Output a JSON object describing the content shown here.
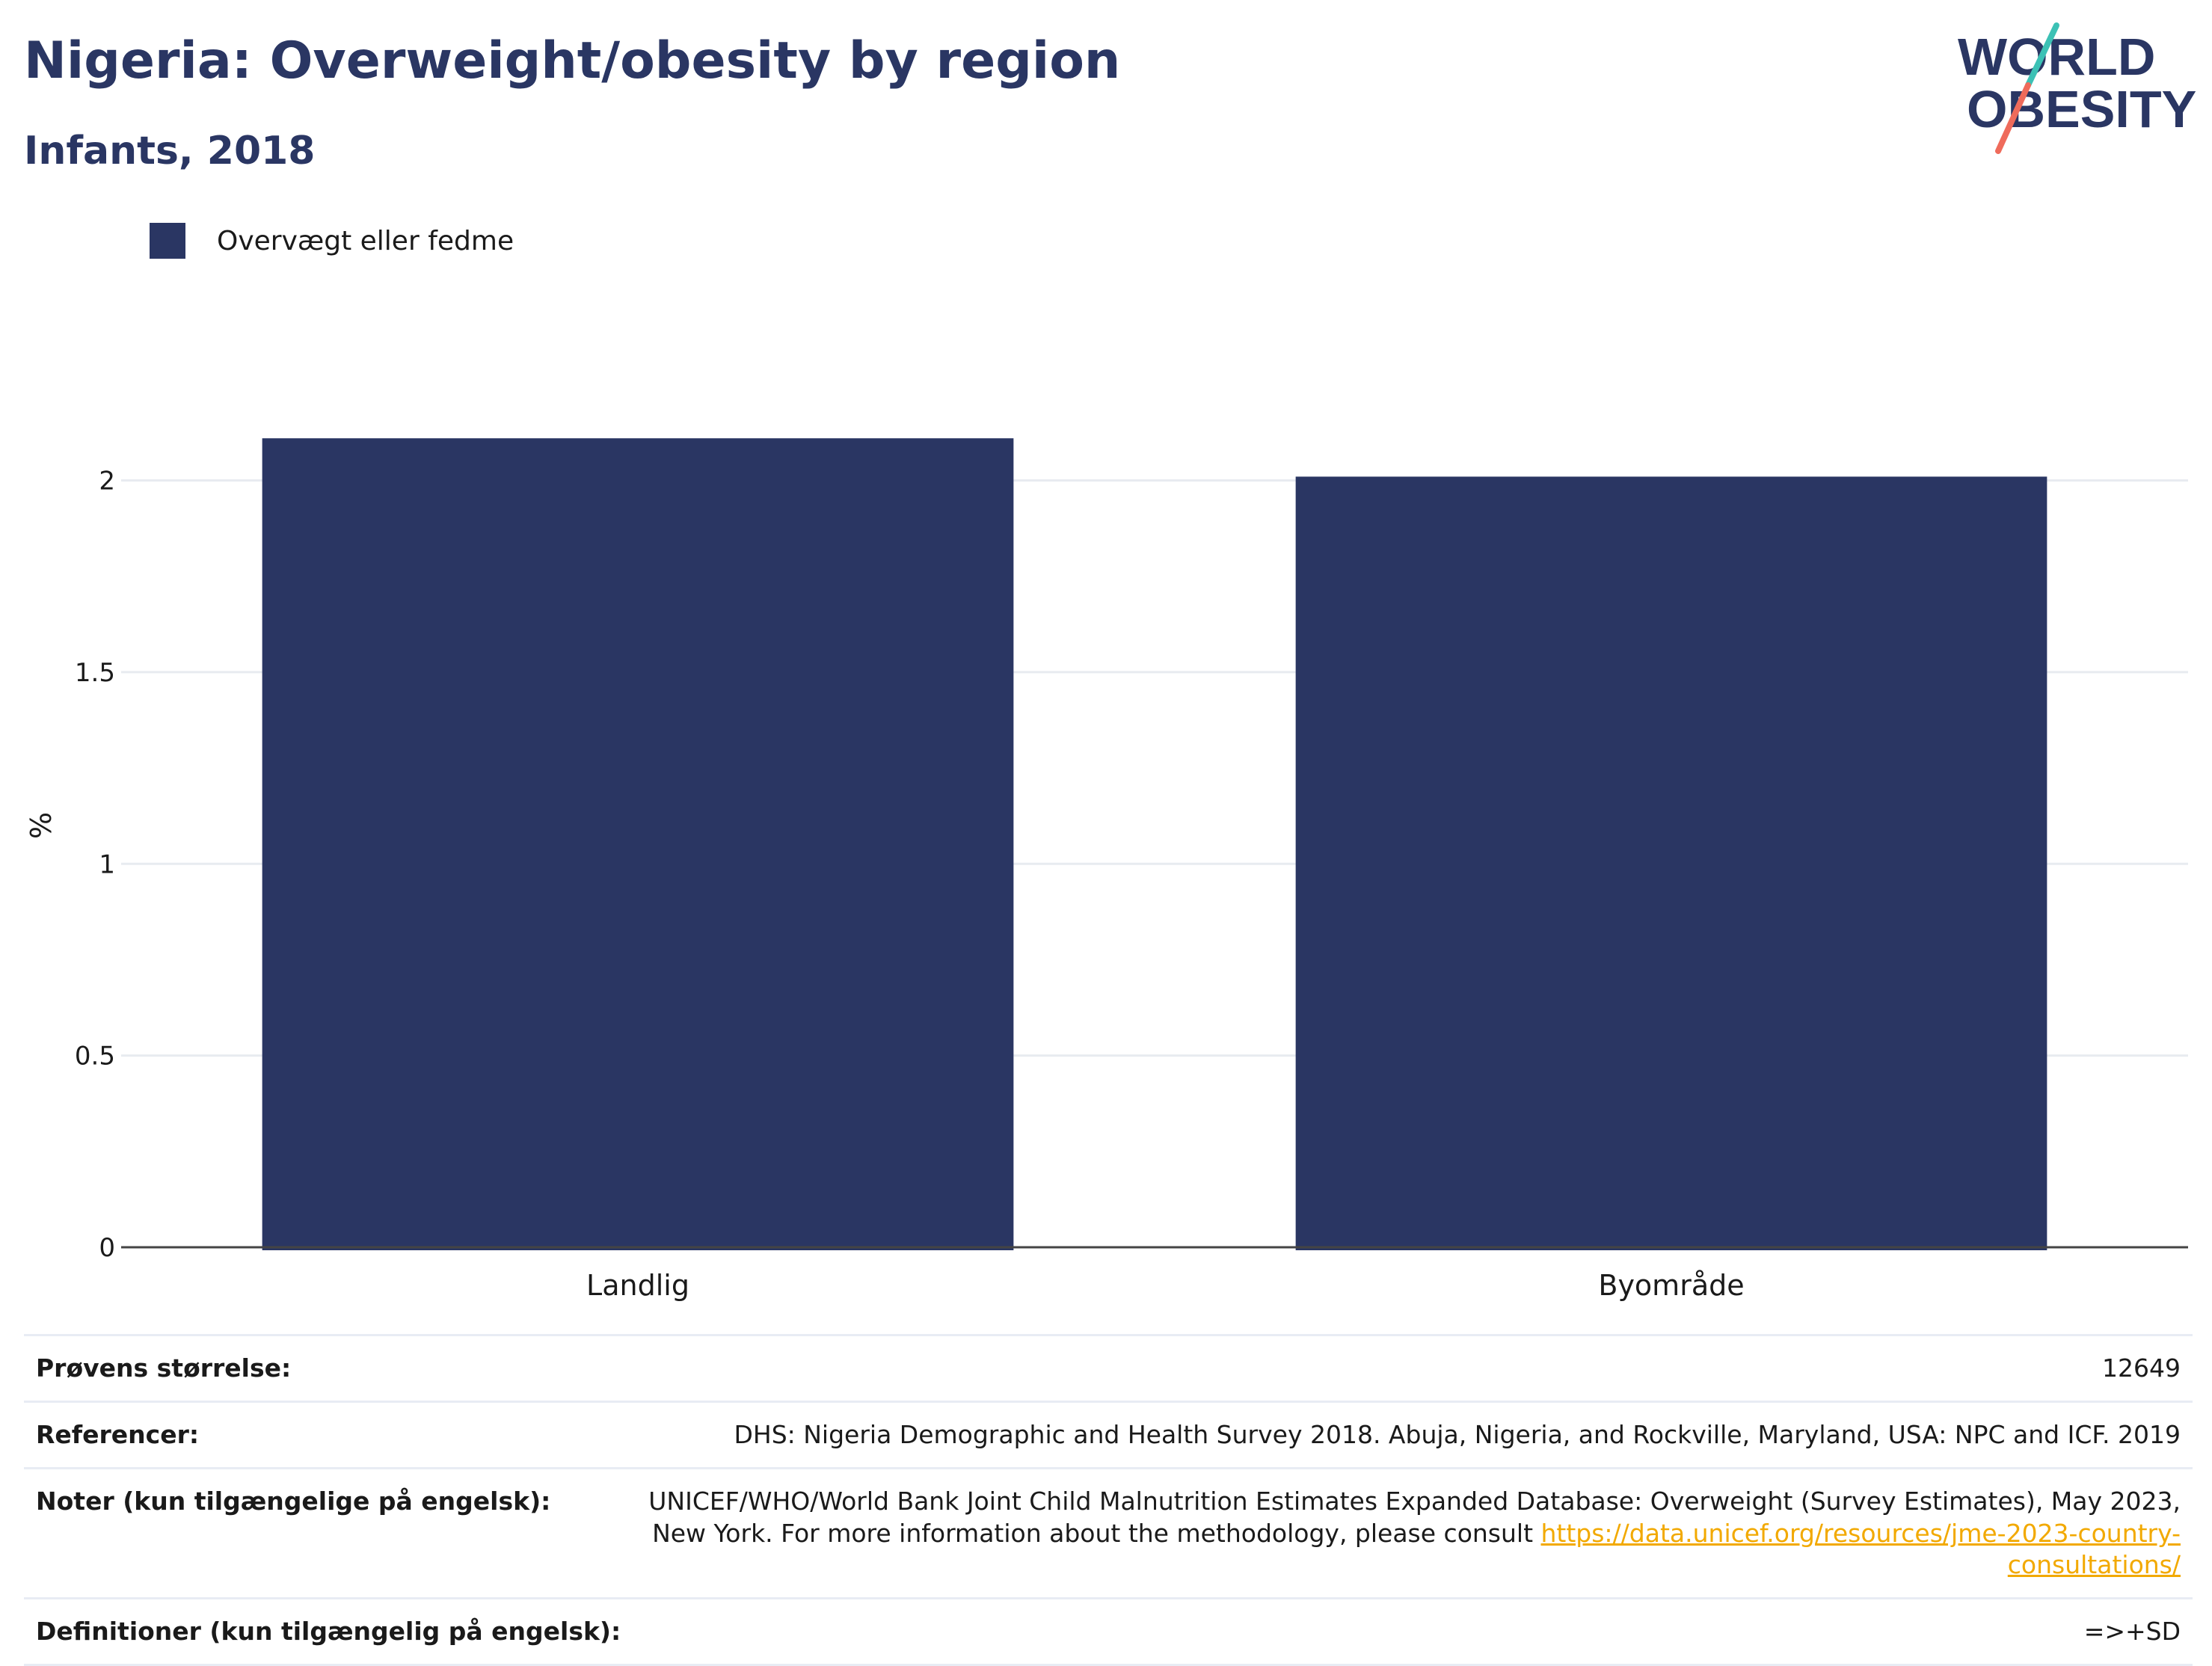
{
  "header": {
    "title": "Nigeria: Overweight/obesity by region",
    "subtitle": "Infants, 2018"
  },
  "logo": {
    "line1": "WORLD",
    "line2": "OBESITY",
    "accent_colors": [
      "#3cc1b5",
      "#ef6b5b"
    ],
    "brand_color": "#2a3663"
  },
  "chart_data": {
    "type": "bar",
    "categories": [
      "Landlig",
      "Byområde"
    ],
    "series": [
      {
        "name": "Overvægt eller fedme",
        "values": [
          2.11,
          2.01
        ],
        "color": "#2a3663"
      }
    ],
    "ylabel": "%",
    "xlabel": "",
    "ylim": [
      0,
      2.2
    ],
    "yticks": [
      0,
      0.5,
      1,
      1.5,
      2
    ],
    "ytick_labels": [
      "0",
      "0.5",
      "1",
      "1.5",
      "2"
    ],
    "grid": true,
    "legend_position": "top-left"
  },
  "info": {
    "rows": [
      {
        "label": "Prøvens størrelse:",
        "value": "12649"
      },
      {
        "label": "Referencer:",
        "value": "DHS: Nigeria Demographic and Health Survey 2018. Abuja, Nigeria, and Rockville, Maryland, USA: NPC and ICF. 2019"
      },
      {
        "label": "Noter (kun tilgængelige på engelsk):",
        "value": "UNICEF/WHO/World Bank Joint Child Malnutrition Estimates Expanded Database: Overweight (Survey Estimates), May 2023, New York. For more information about the methodology, please consult ",
        "link": "https://data.unicef.org/resources/jme-2023-country-consultations/"
      },
      {
        "label": "Definitioner (kun tilgængelig på engelsk):",
        "value": "=>+SD"
      }
    ]
  }
}
